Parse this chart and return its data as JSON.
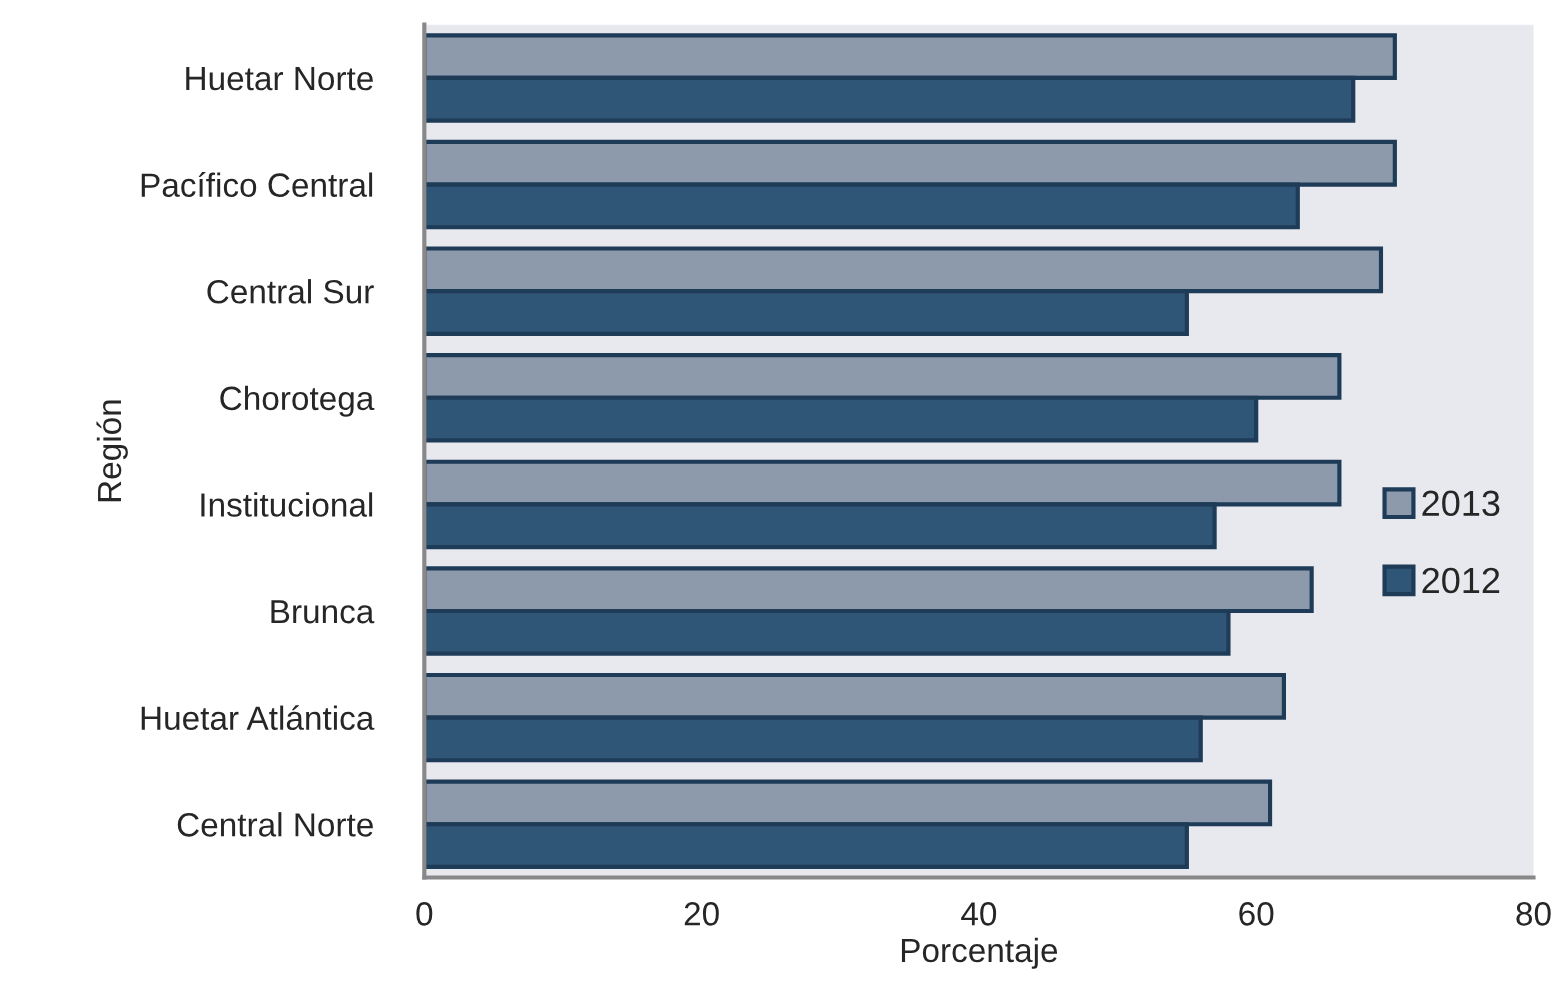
{
  "chart_data": {
    "type": "bar",
    "orientation": "horizontal",
    "xlabel": "Porcentaje",
    "ylabel": "Región",
    "categories": [
      "Huetar Norte",
      "Pacífico Central",
      "Central Sur",
      "Chorotega",
      "Institucional",
      "Brunca",
      "Huetar Atlántica",
      "Central Norte"
    ],
    "series": [
      {
        "name": "2013",
        "color": "#8d9aab",
        "values": [
          70,
          70,
          69,
          66,
          66,
          64,
          62,
          61
        ]
      },
      {
        "name": "2012",
        "color": "#2f5577",
        "values": [
          67,
          63,
          55,
          60,
          57,
          58,
          56,
          55
        ]
      }
    ],
    "xlim": [
      0,
      80
    ],
    "xticks": [
      0,
      20,
      40,
      60,
      80
    ],
    "grid": false,
    "legend": "right"
  }
}
